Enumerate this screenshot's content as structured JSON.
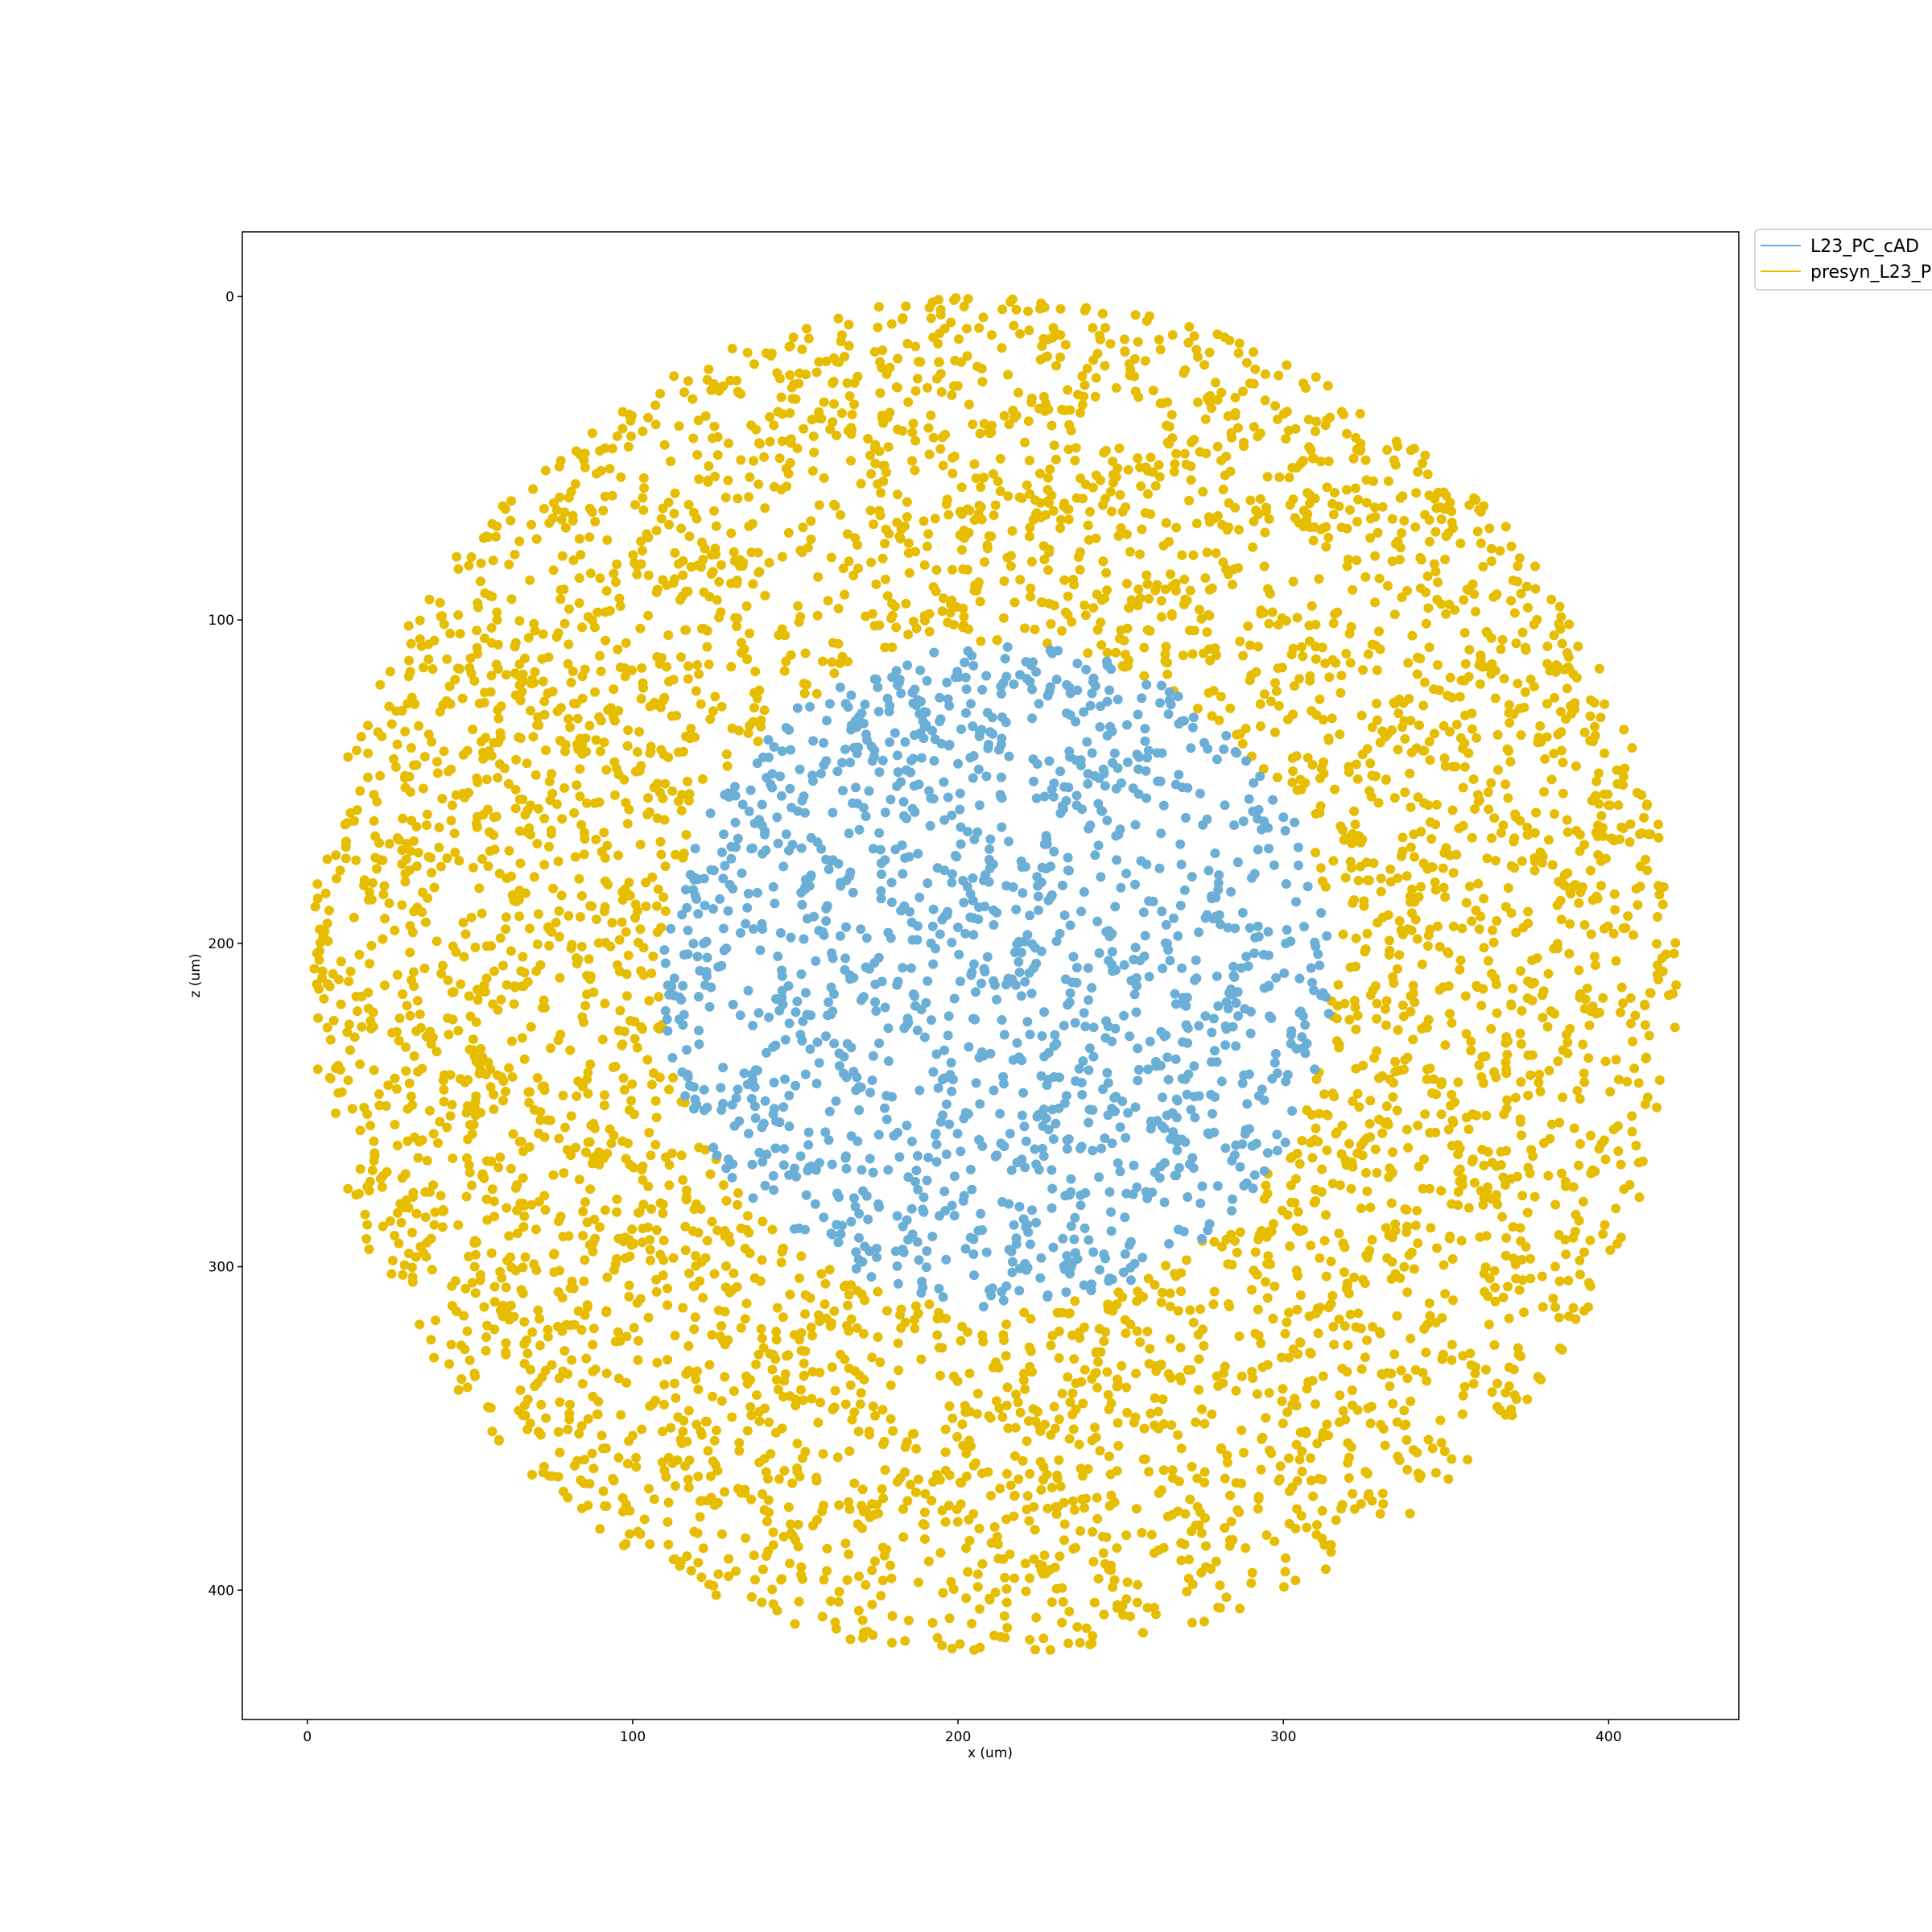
{
  "chart_data": {
    "type": "scatter",
    "title": "",
    "xlabel": "x (um)",
    "ylabel": "z (um)",
    "xlim": [
      -20,
      440
    ],
    "ylim": [
      -20,
      440
    ],
    "y_inverted": true,
    "xticks": [
      0,
      100,
      200,
      300,
      400
    ],
    "yticks": [
      0,
      100,
      200,
      300,
      400
    ],
    "grid": false,
    "legend": {
      "placement": "outside-top-right",
      "entries": [
        {
          "label": "L23_PC_cAD",
          "color": "#6baed6"
        },
        {
          "label": "presyn_L23_P",
          "color": "#e6bd00"
        }
      ]
    },
    "series": [
      {
        "name": "presyn_L23_P",
        "color": "#e6bd00",
        "count": 4600,
        "distribution": "uniform disk",
        "center": [
          211,
          210
        ],
        "radius": 210,
        "hole_center": [
          212,
          210
        ],
        "hole_radius": 103,
        "seed": 7
      },
      {
        "name": "L23_PC_cAD",
        "color": "#6baed6",
        "count": 1450,
        "distribution": "uniform disk",
        "center": [
          212,
          210
        ],
        "radius": 103,
        "seed": 13
      }
    ]
  }
}
